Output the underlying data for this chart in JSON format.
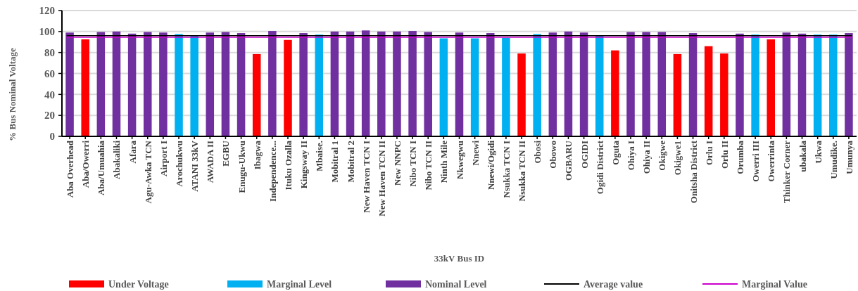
{
  "chart_data": {
    "type": "bar",
    "xlabel": "33kV Bus ID",
    "ylabel": "% Bus Nominal Voltage",
    "categories": [
      "Aba Overhead",
      "Aba/Owerri",
      "Aba/Umuahia",
      "Abakaliki",
      "Afara",
      "Agu-Awka TCN",
      "Airport I",
      "Arochukwu",
      "ATANI 33kV",
      "AWADA II",
      "EGBU",
      "Enugu-Ukwu",
      "Ibagwa",
      "Independence...",
      "Ituku Ozalla",
      "Kingsway II",
      "Mbaise.",
      "Mobitral 1",
      "Mobitral 2",
      "New Haven TCN I",
      "New Haven TCN II",
      "New NNPC",
      "Nibo TCN I",
      "Nibo TCN II",
      "Ninth Mile",
      "Nkwegwu",
      "Nnewi",
      "Nnewi/Ogidi",
      "Nsukka TCN I",
      "Nsukka TCN II",
      "Obosi",
      "Obowo",
      "OGBARU",
      "OGIDI",
      "Ogidi District",
      "Oguta",
      "Ohiya I",
      "Ohiya II",
      "Okigwe",
      "Okigwe1",
      "Onitsha District",
      "Orlu I",
      "Orlu II",
      "Orumba",
      "Owerri III",
      "Owerrinta",
      "Thinker Corner",
      "ubakala",
      "Ukwa",
      "Umudike.",
      "Umunya"
    ],
    "stacked": true,
    "series": [
      {
        "name": "Under Voltage",
        "color": "#ff0000",
        "values": [
          null,
          92.5,
          null,
          null,
          null,
          null,
          null,
          null,
          null,
          null,
          null,
          null,
          78.5,
          null,
          92,
          null,
          null,
          null,
          null,
          null,
          null,
          null,
          null,
          null,
          null,
          null,
          null,
          null,
          null,
          79,
          null,
          null,
          null,
          null,
          null,
          82,
          null,
          null,
          null,
          78.5,
          null,
          86,
          79,
          null,
          null,
          92.5,
          null,
          null,
          null,
          null,
          null
        ]
      },
      {
        "name": "Marginal Level",
        "color": "#00b0f0",
        "values": [
          null,
          null,
          null,
          null,
          null,
          null,
          null,
          97.5,
          96,
          null,
          null,
          null,
          null,
          null,
          null,
          null,
          97,
          null,
          null,
          null,
          null,
          null,
          null,
          null,
          93.5,
          null,
          93.5,
          null,
          94,
          null,
          97.5,
          null,
          null,
          null,
          96,
          null,
          null,
          null,
          null,
          null,
          null,
          null,
          null,
          null,
          97,
          null,
          null,
          null,
          97,
          97,
          null
        ]
      },
      {
        "name": "Nominal Level",
        "color": "#7030a0",
        "values": [
          99,
          null,
          99.5,
          100,
          98,
          99.5,
          99,
          null,
          null,
          99,
          99.5,
          98.5,
          null,
          100.5,
          null,
          98.5,
          null,
          100,
          100,
          101,
          100,
          100,
          100.5,
          99.5,
          null,
          99,
          null,
          98.5,
          null,
          null,
          null,
          99,
          100,
          99,
          null,
          null,
          99.5,
          99.5,
          99.5,
          null,
          98.5,
          null,
          null,
          98,
          null,
          null,
          99,
          98,
          null,
          null,
          98.5
        ]
      }
    ],
    "ref_lines": [
      {
        "axis": "y",
        "value": 96,
        "label": "Average value",
        "color": "#000000"
      },
      {
        "axis": "y",
        "value": 94.5,
        "label": "Marginal Value",
        "color": "#cc00cc"
      }
    ],
    "ylim": [
      0,
      120
    ],
    "yticks": [
      0,
      20,
      40,
      60,
      80,
      100,
      120
    ],
    "grid": "y",
    "legend": "bottom"
  }
}
